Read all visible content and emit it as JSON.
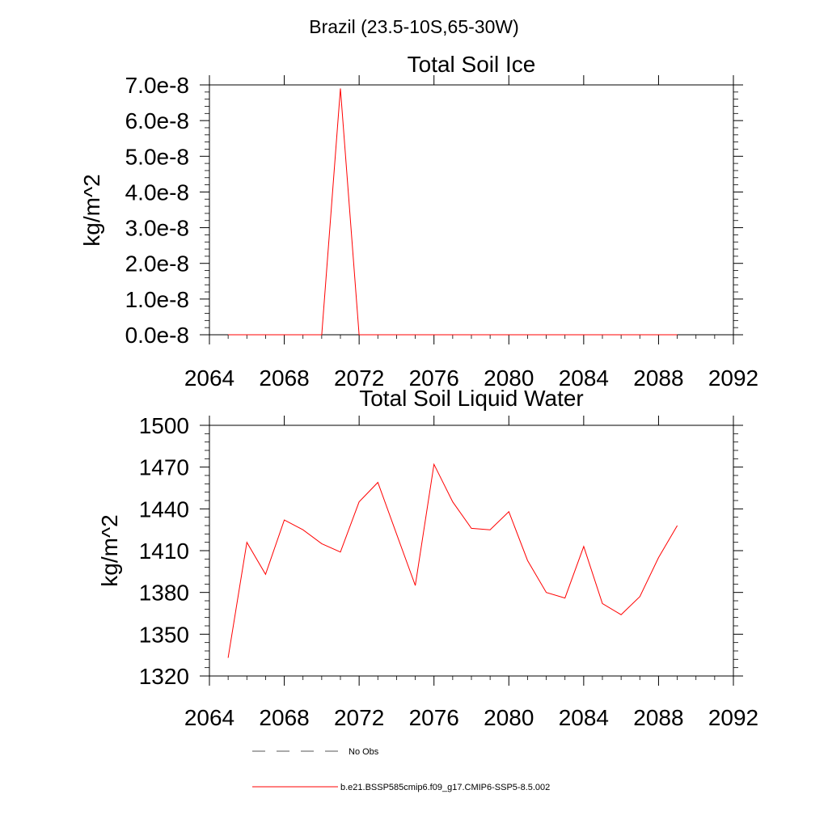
{
  "figure": {
    "title": "Brazil (23.5-10S,65-30W)"
  },
  "chart_data": [
    {
      "type": "line",
      "title": "Total Soil Ice",
      "ylabel": "kg/m^2",
      "xlabel": "",
      "xlim": [
        2064,
        2092
      ],
      "ylim": [
        0,
        7e-08
      ],
      "xticks": [
        2064,
        2068,
        2072,
        2076,
        2080,
        2084,
        2088,
        2092
      ],
      "xtick_labels": [
        "2064",
        "2068",
        "2072",
        "2076",
        "2080",
        "2084",
        "2088",
        "2092"
      ],
      "yticks": [
        0,
        1e-08,
        2e-08,
        3e-08,
        4e-08,
        5e-08,
        6e-08,
        7e-08
      ],
      "ytick_labels": [
        "0.0e-8",
        "1.0e-8",
        "2.0e-8",
        "3.0e-8",
        "4.0e-8",
        "5.0e-8",
        "6.0e-8",
        "7.0e-8"
      ],
      "grid": false,
      "series": [
        {
          "color": "#ff0000",
          "x": [
            2065,
            2066,
            2067,
            2068,
            2069,
            2070,
            2071,
            2072,
            2073,
            2074,
            2075,
            2076,
            2077,
            2078,
            2079,
            2080,
            2081,
            2082,
            2083,
            2084,
            2085,
            2086,
            2087,
            2088,
            2089
          ],
          "y": [
            0,
            0,
            0,
            0,
            0,
            0,
            6.9e-08,
            0,
            0,
            0,
            0,
            0,
            0,
            0,
            0,
            0,
            0,
            0,
            0,
            0,
            0,
            0,
            0,
            0,
            0
          ]
        }
      ]
    },
    {
      "type": "line",
      "title": "Total Soil Liquid Water",
      "ylabel": "kg/m^2",
      "xlabel": "",
      "xlim": [
        2064,
        2092
      ],
      "ylim": [
        1320,
        1500
      ],
      "xticks": [
        2064,
        2068,
        2072,
        2076,
        2080,
        2084,
        2088,
        2092
      ],
      "xtick_labels": [
        "2064",
        "2068",
        "2072",
        "2076",
        "2080",
        "2084",
        "2088",
        "2092"
      ],
      "yticks": [
        1320,
        1350,
        1380,
        1410,
        1440,
        1470,
        1500
      ],
      "ytick_labels": [
        "1320",
        "1350",
        "1380",
        "1410",
        "1440",
        "1470",
        "1500"
      ],
      "grid": false,
      "series": [
        {
          "color": "#ff0000",
          "x": [
            2065,
            2066,
            2067,
            2068,
            2069,
            2070,
            2071,
            2072,
            2073,
            2074,
            2075,
            2076,
            2077,
            2078,
            2079,
            2080,
            2081,
            2082,
            2083,
            2084,
            2085,
            2086,
            2087,
            2088,
            2089
          ],
          "y": [
            1333,
            1416,
            1393,
            1432,
            1425,
            1415,
            1409,
            1445,
            1459,
            1422,
            1385,
            1472,
            1445,
            1426,
            1425,
            1438,
            1403,
            1380,
            1376,
            1413,
            1372,
            1364,
            1377,
            1405,
            1428
          ]
        }
      ]
    }
  ],
  "legend": {
    "placement": "bottom",
    "items": [
      {
        "label": "No Obs",
        "color": "#555555",
        "dashed": true
      },
      {
        "label": "b.e21.BSSP585cmip6.f09_g17.CMIP6-SSP5-8.5.002",
        "color": "#ff0000",
        "dashed": false
      }
    ]
  }
}
